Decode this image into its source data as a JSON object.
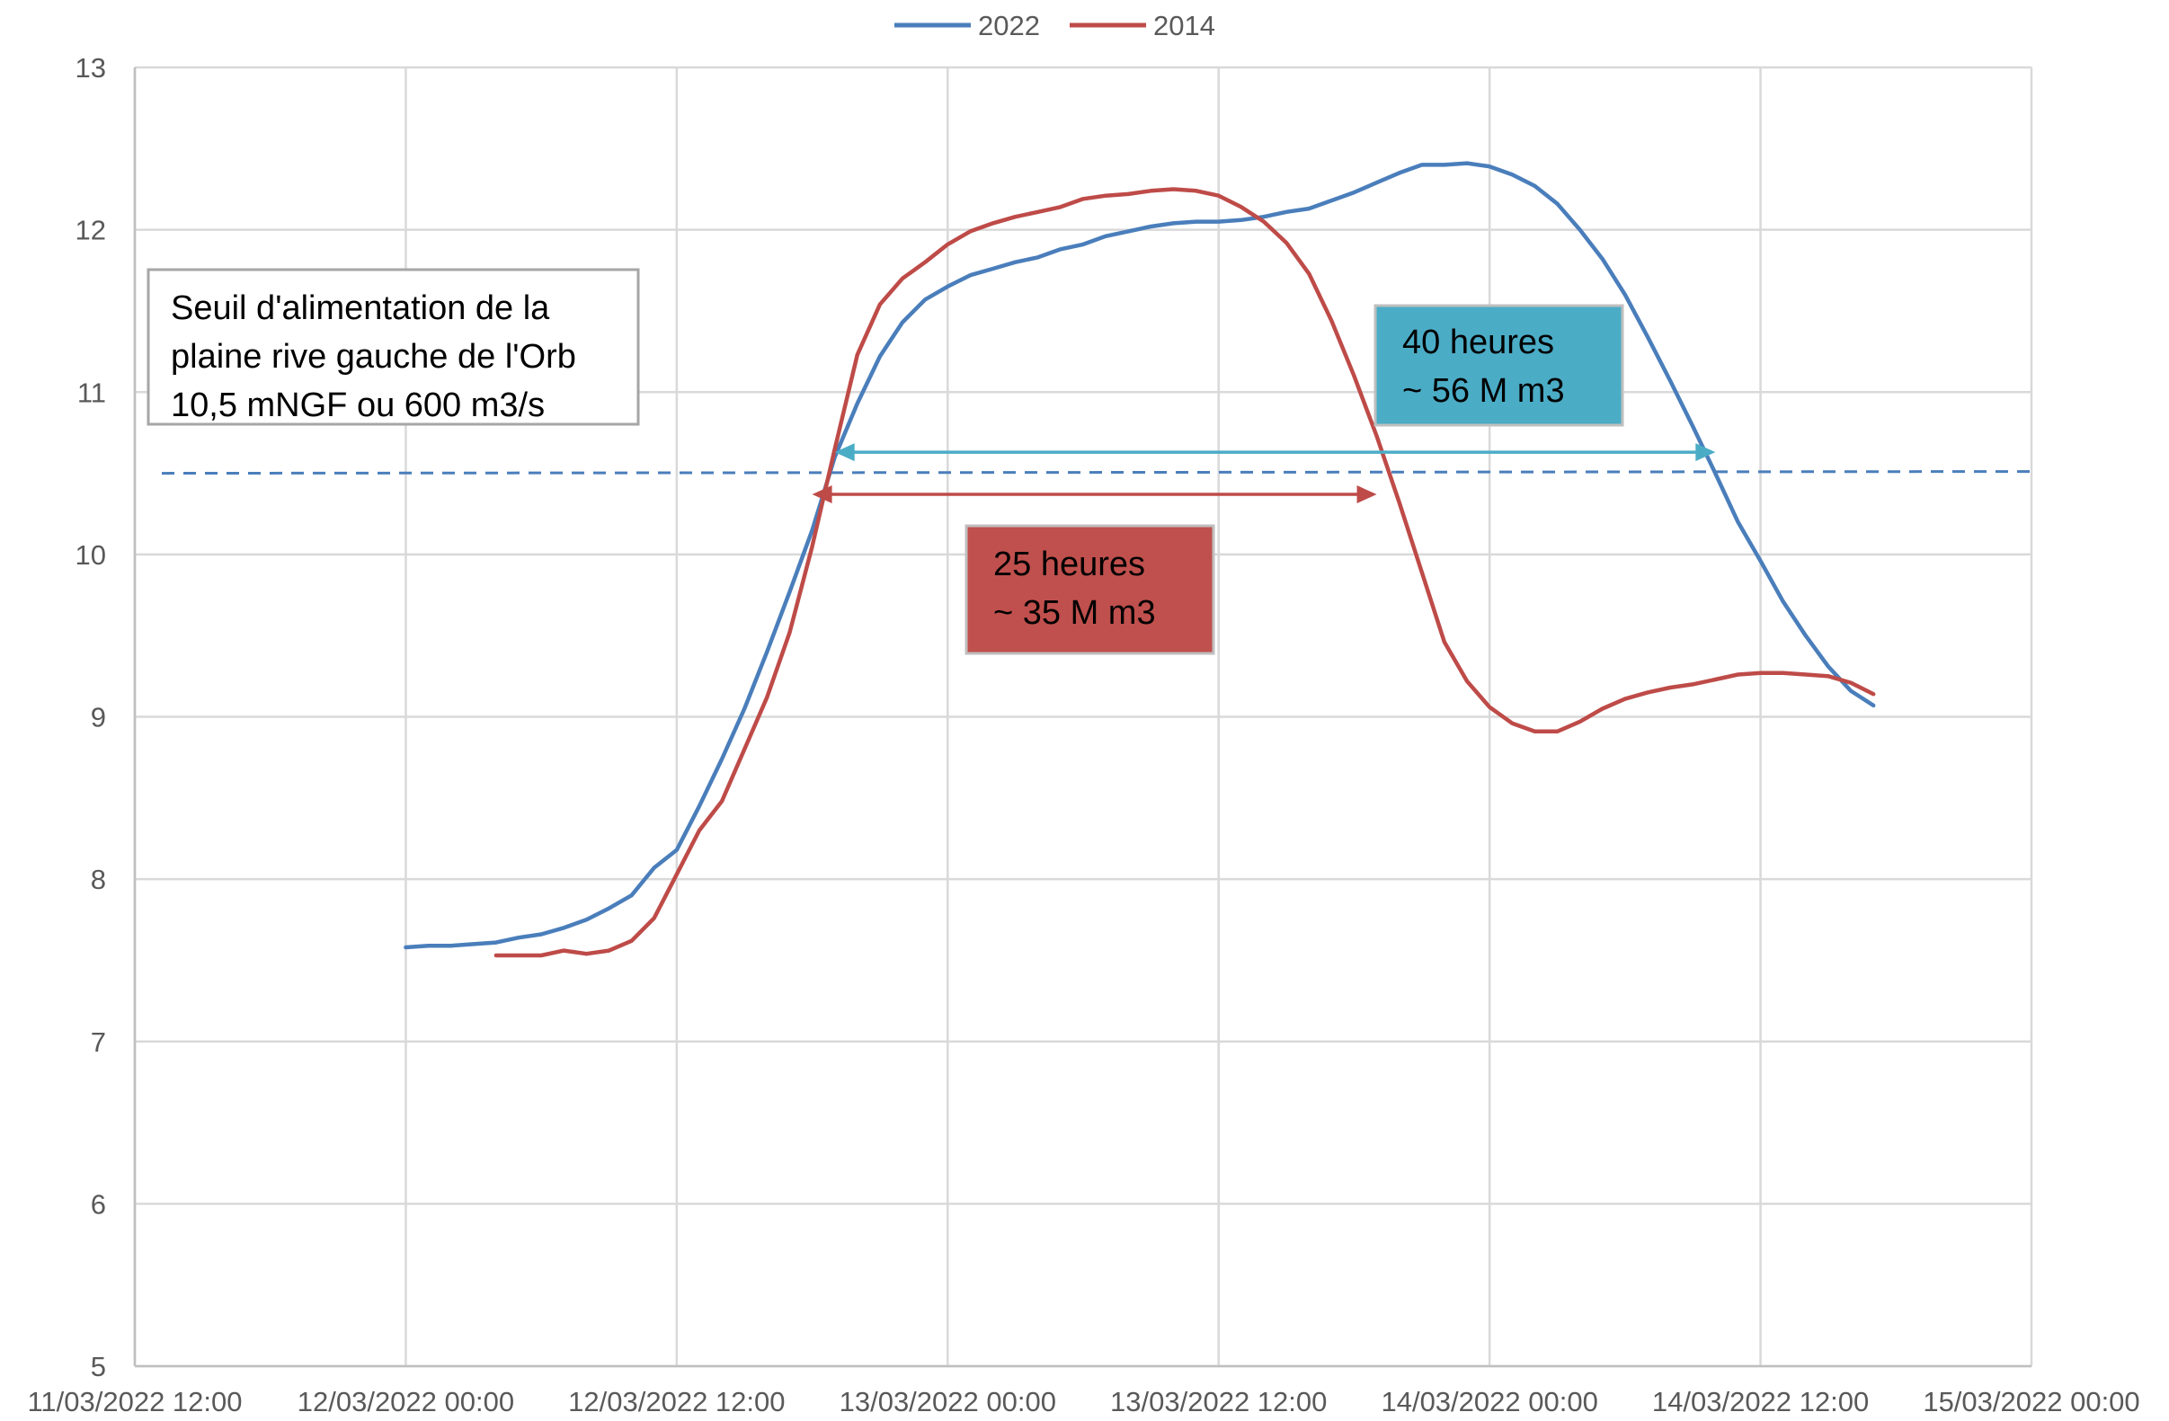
{
  "chart_data": {
    "type": "line",
    "title": "",
    "xlabel": "",
    "ylabel": "",
    "xlim": [
      "11/03/2022 12:00",
      "15/03/2022 00:00"
    ],
    "ylim": [
      5,
      13
    ],
    "x_tick_labels": [
      "11/03/2022 12:00",
      "12/03/2022 00:00",
      "12/03/2022 12:00",
      "13/03/2022 00:00",
      "13/03/2022 12:00",
      "14/03/2022 00:00",
      "14/03/2022 12:00",
      "15/03/2022 00:00"
    ],
    "y_tick_labels": [
      "5",
      "6",
      "7",
      "8",
      "9",
      "10",
      "11",
      "12",
      "13"
    ],
    "grid": true,
    "legend": {
      "position": "top-center",
      "entries": [
        "2022",
        "2014"
      ]
    },
    "colors": {
      "2022": "#4a7ebb",
      "2014": "#be4b48",
      "arrow40": "#4bacc6",
      "box40": "#4bacc6",
      "box25": "#c0504d",
      "threshold": "#4a7ebb"
    },
    "series": [
      {
        "name": "2022",
        "color": "#4a7ebb",
        "x": [
          "12/03/2022 00:00",
          "12/03/2022 01:00",
          "12/03/2022 02:00",
          "12/03/2022 03:00",
          "12/03/2022 04:00",
          "12/03/2022 05:00",
          "12/03/2022 06:00",
          "12/03/2022 07:00",
          "12/03/2022 08:00",
          "12/03/2022 09:00",
          "12/03/2022 10:00",
          "12/03/2022 11:00",
          "12/03/2022 12:00",
          "12/03/2022 13:00",
          "12/03/2022 14:00",
          "12/03/2022 15:00",
          "12/03/2022 16:00",
          "12/03/2022 17:00",
          "12/03/2022 18:00",
          "12/03/2022 19:00",
          "12/03/2022 20:00",
          "12/03/2022 21:00",
          "12/03/2022 22:00",
          "12/03/2022 23:00",
          "13/03/2022 00:00",
          "13/03/2022 01:00",
          "13/03/2022 02:00",
          "13/03/2022 03:00",
          "13/03/2022 04:00",
          "13/03/2022 05:00",
          "13/03/2022 06:00",
          "13/03/2022 07:00",
          "13/03/2022 08:00",
          "13/03/2022 09:00",
          "13/03/2022 10:00",
          "13/03/2022 11:00",
          "13/03/2022 12:00",
          "13/03/2022 13:00",
          "13/03/2022 14:00",
          "13/03/2022 15:00",
          "13/03/2022 16:00",
          "13/03/2022 17:00",
          "13/03/2022 18:00",
          "13/03/2022 19:00",
          "13/03/2022 20:00",
          "13/03/2022 21:00",
          "13/03/2022 22:00",
          "13/03/2022 23:00",
          "14/03/2022 00:00",
          "14/03/2022 01:00",
          "14/03/2022 02:00",
          "14/03/2022 03:00",
          "14/03/2022 04:00",
          "14/03/2022 05:00",
          "14/03/2022 06:00",
          "14/03/2022 07:00",
          "14/03/2022 08:00",
          "14/03/2022 09:00",
          "14/03/2022 10:00",
          "14/03/2022 11:00",
          "14/03/2022 12:00",
          "14/03/2022 13:00",
          "14/03/2022 14:00",
          "14/03/2022 15:00",
          "14/03/2022 16:00",
          "14/03/2022 17:00"
        ],
        "y": [
          7.58,
          7.59,
          7.59,
          7.6,
          7.61,
          7.64,
          7.66,
          7.7,
          7.75,
          7.82,
          7.9,
          8.07,
          8.18,
          8.45,
          8.74,
          9.05,
          9.4,
          9.77,
          10.15,
          10.6,
          10.93,
          11.22,
          11.43,
          11.57,
          11.65,
          11.72,
          11.76,
          11.8,
          11.83,
          11.88,
          11.91,
          11.96,
          11.99,
          12.02,
          12.04,
          12.05,
          12.05,
          12.06,
          12.08,
          12.11,
          12.13,
          12.18,
          12.23,
          12.29,
          12.35,
          12.4,
          12.4,
          12.41,
          12.39,
          12.34,
          12.27,
          12.16,
          12.0,
          11.82,
          11.6,
          11.34,
          11.07,
          10.79,
          10.5,
          10.2,
          9.96,
          9.71,
          9.5,
          9.31,
          9.16,
          9.07
        ]
      },
      {
        "name": "2014",
        "color": "#be4b48",
        "x": [
          "12/03/2022 04:00",
          "12/03/2022 05:00",
          "12/03/2022 06:00",
          "12/03/2022 07:00",
          "12/03/2022 08:00",
          "12/03/2022 09:00",
          "12/03/2022 10:00",
          "12/03/2022 11:00",
          "12/03/2022 12:00",
          "12/03/2022 13:00",
          "12/03/2022 14:00",
          "12/03/2022 15:00",
          "12/03/2022 16:00",
          "12/03/2022 17:00",
          "12/03/2022 18:00",
          "12/03/2022 19:00",
          "12/03/2022 20:00",
          "12/03/2022 21:00",
          "12/03/2022 22:00",
          "12/03/2022 23:00",
          "13/03/2022 00:00",
          "13/03/2022 01:00",
          "13/03/2022 02:00",
          "13/03/2022 03:00",
          "13/03/2022 04:00",
          "13/03/2022 05:00",
          "13/03/2022 06:00",
          "13/03/2022 07:00",
          "13/03/2022 08:00",
          "13/03/2022 09:00",
          "13/03/2022 10:00",
          "13/03/2022 11:00",
          "13/03/2022 12:00",
          "13/03/2022 13:00",
          "13/03/2022 14:00",
          "13/03/2022 15:00",
          "13/03/2022 16:00",
          "13/03/2022 17:00",
          "13/03/2022 18:00",
          "13/03/2022 19:00",
          "13/03/2022 20:00",
          "13/03/2022 21:00",
          "13/03/2022 22:00",
          "13/03/2022 23:00",
          "14/03/2022 00:00",
          "14/03/2022 01:00",
          "14/03/2022 02:00",
          "14/03/2022 03:00",
          "14/03/2022 04:00",
          "14/03/2022 05:00",
          "14/03/2022 06:00",
          "14/03/2022 07:00",
          "14/03/2022 08:00",
          "14/03/2022 09:00",
          "14/03/2022 10:00",
          "14/03/2022 11:00",
          "14/03/2022 12:00",
          "14/03/2022 13:00",
          "14/03/2022 14:00",
          "14/03/2022 15:00",
          "14/03/2022 16:00",
          "14/03/2022 17:00"
        ],
        "y": [
          7.53,
          7.53,
          7.53,
          7.56,
          7.54,
          7.56,
          7.62,
          7.76,
          8.03,
          8.3,
          8.48,
          8.8,
          9.12,
          9.52,
          10.05,
          10.65,
          11.23,
          11.54,
          11.7,
          11.8,
          11.91,
          11.99,
          12.04,
          12.08,
          12.11,
          12.14,
          12.19,
          12.21,
          12.22,
          12.24,
          12.25,
          12.24,
          12.21,
          12.14,
          12.05,
          11.92,
          11.73,
          11.44,
          11.1,
          10.73,
          10.32,
          9.89,
          9.46,
          9.22,
          9.06,
          8.96,
          8.91,
          8.91,
          8.97,
          9.05,
          9.11,
          9.15,
          9.18,
          9.2,
          9.23,
          9.26,
          9.27,
          9.27,
          9.26,
          9.25,
          9.21,
          9.14
        ]
      }
    ],
    "threshold": {
      "y": 10.5
    },
    "arrows": [
      {
        "series": "2022",
        "x_start": "12/03/2022 19:00",
        "x_end": "14/03/2022 10:00",
        "y": 10.63,
        "color": "#4bacc6"
      },
      {
        "series": "2014",
        "x_start": "12/03/2022 18:00",
        "x_end": "13/03/2022 19:00",
        "y": 10.37,
        "color": "#be4b48"
      }
    ],
    "annotations": {
      "threshold_box": [
        "Seuil d'alimentation de la",
        "plaine rive gauche de l'Orb",
        "10,5 mNGF ou 600 m3/s"
      ],
      "box_40": [
        "40 heures",
        "~ 56 M m3"
      ],
      "box_25": [
        "25 heures",
        "~ 35 M m3"
      ]
    }
  }
}
